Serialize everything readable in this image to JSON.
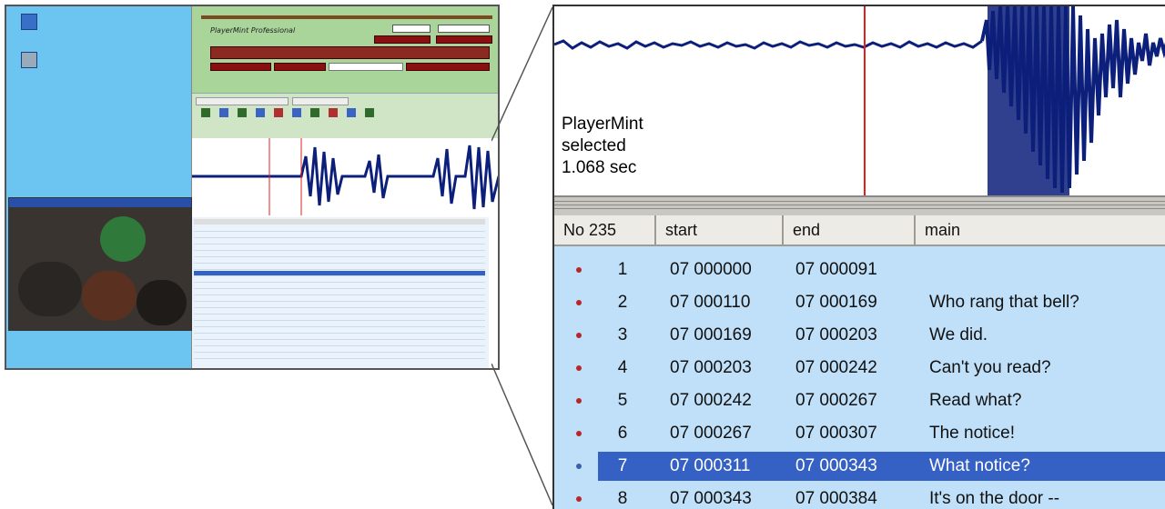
{
  "wave_panel": {
    "label_app": "PlayerMint",
    "label_state": "selected",
    "label_duration": "1.068 sec"
  },
  "table": {
    "columns": [
      "No 235",
      "start",
      "end",
      "main"
    ],
    "rows": [
      {
        "no": "1",
        "start": "07 000000",
        "end": "07 000091",
        "main": ""
      },
      {
        "no": "2",
        "start": "07 000110",
        "end": "07 000169",
        "main": "Who rang that bell?"
      },
      {
        "no": "3",
        "start": "07 000169",
        "end": "07 000203",
        "main": "We did."
      },
      {
        "no": "4",
        "start": "07 000203",
        "end": "07 000242",
        "main": "Can't you read?"
      },
      {
        "no": "5",
        "start": "07 000242",
        "end": "07 000267",
        "main": "Read what?"
      },
      {
        "no": "6",
        "start": "07 000267",
        "end": "07 000307",
        "main": "The notice!"
      },
      {
        "no": "7",
        "start": "07 000311",
        "end": "07 000343",
        "main": "What notice?"
      },
      {
        "no": "8",
        "start": "07 000343",
        "end": "07 000384",
        "main": "It's on the door --"
      }
    ],
    "selected_row_no": "7"
  },
  "colors": {
    "waveform": "#0c1f7a",
    "cursor": "#e0201c",
    "selection": "#3560c4",
    "grid_bg": "#bfe0f8",
    "desktop_bg": "#6cc4f0"
  },
  "thumbnail": {
    "app_title": "PlayerMint Professional"
  },
  "icons": [
    "desktop-icon",
    "record-marker-icon",
    "selected-marker-icon",
    "toolbar-icon"
  ]
}
